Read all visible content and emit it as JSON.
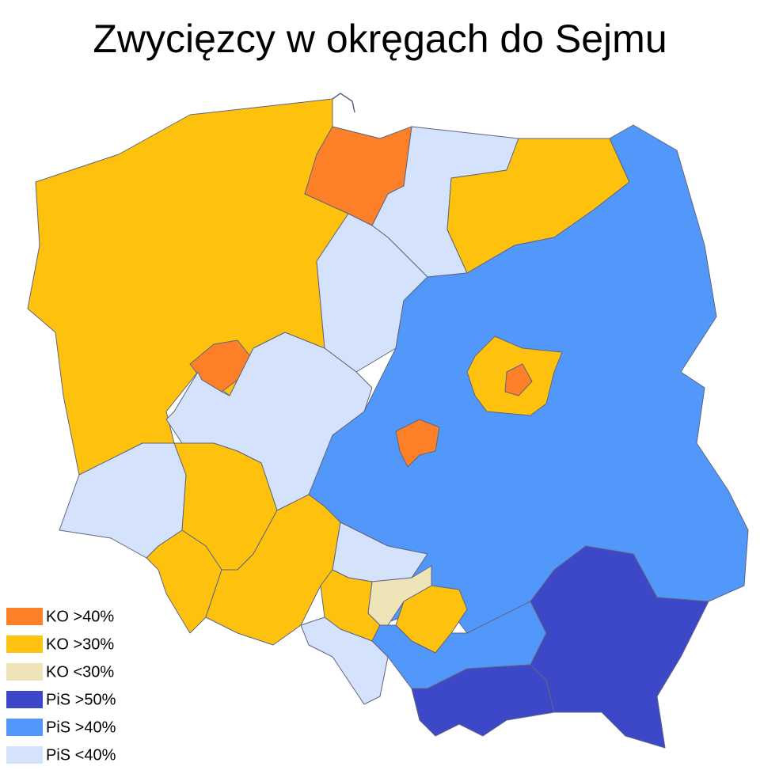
{
  "title": "Zwycięzcy w okręgach do Sejmu",
  "legend": [
    {
      "label": "KO >40%",
      "color": "#fd7f28"
    },
    {
      "label": "KO >30%",
      "color": "#fec20e"
    },
    {
      "label": "KO <30%",
      "color": "#efe3b8"
    },
    {
      "label": "PiS >50%",
      "color": "#3c48c8"
    },
    {
      "label": "PiS >40%",
      "color": "#5298fb"
    },
    {
      "label": "PiS <40%",
      "color": "#d4e3fb"
    }
  ]
}
